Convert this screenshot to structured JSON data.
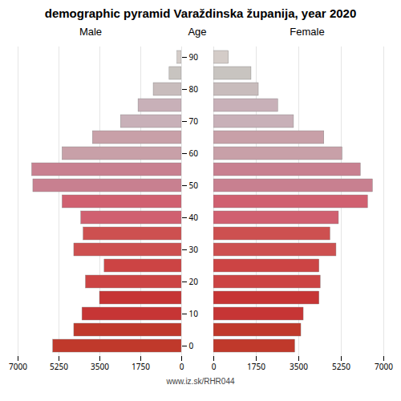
{
  "chart_data": {
    "type": "bar",
    "orientation": "horizontal",
    "title": "demographic pyramid Varaždinska županija, year 2020",
    "ylabel": "Age",
    "annotations": [
      "www.iz.sk/RHR044"
    ],
    "categories": [
      "0",
      null,
      "10",
      null,
      "20",
      null,
      "30",
      null,
      "40",
      null,
      "50",
      null,
      "60",
      null,
      "70",
      null,
      "80",
      null,
      "90"
    ],
    "series": [
      {
        "name": "Male",
        "values": [
          5500,
          4600,
          4250,
          3500,
          4100,
          3300,
          4600,
          4200,
          4300,
          5100,
          6350,
          6400,
          5100,
          3800,
          2600,
          1850,
          1200,
          520,
          180
        ],
        "colors": [
          "#c0392b",
          "#c0392b",
          "#c63535",
          "#c63535",
          "#cc4444",
          "#cc4444",
          "#cd5050",
          "#cd5050",
          "#d06070",
          "#d06070",
          "#c88090",
          "#c88090",
          "#c8a0a8",
          "#c8a0a8",
          "#c8b0b8",
          "#c8b0b8",
          "#c8bcbc",
          "#c8c4c0",
          "#d4ccc8"
        ]
      },
      {
        "name": "Female",
        "values": [
          3350,
          3600,
          3700,
          4350,
          4400,
          4350,
          5050,
          4800,
          5150,
          6350,
          6550,
          6050,
          5300,
          4550,
          3300,
          2650,
          1850,
          1550,
          620
        ],
        "colors": [
          "#c0392b",
          "#c0392b",
          "#c63535",
          "#c63535",
          "#cc4444",
          "#cc4444",
          "#cd5050",
          "#cd5050",
          "#d06070",
          "#d06070",
          "#c88090",
          "#c88090",
          "#c8a0a8",
          "#c8a0a8",
          "#c8b0b8",
          "#c8b0b8",
          "#c8bcbc",
          "#c8c4c0",
          "#d4ccc8"
        ]
      }
    ],
    "xlim": [
      0,
      7000
    ],
    "xticks": [
      0,
      1750,
      3500,
      5250,
      7000
    ],
    "grid": true
  }
}
